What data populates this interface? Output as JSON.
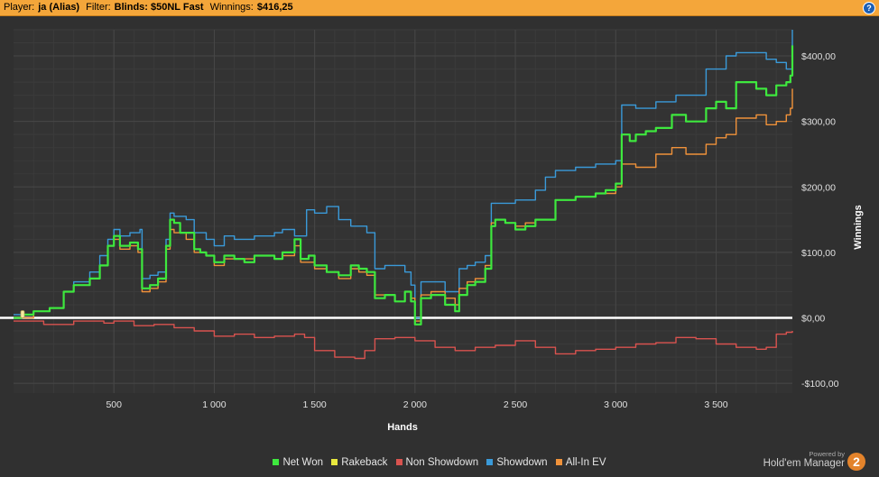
{
  "header": {
    "player_label": "Player:",
    "player_value": "ja (Alias)",
    "filter_label": "Filter:",
    "filter_value": "Blinds: $50NL Fast",
    "winnings_label": "Winnings:",
    "winnings_value": "$416,25",
    "help_icon": "?"
  },
  "branding": {
    "powered_by": "Powered by",
    "product": "Hold'em Manager",
    "logo_text": "2"
  },
  "chart_data": {
    "type": "line",
    "xlabel": "Hands",
    "ylabel": "Winnings",
    "xlim": [
      0,
      3880
    ],
    "ylim": [
      -115,
      440
    ],
    "x_ticks": [
      500,
      1000,
      1500,
      2000,
      2500,
      3000,
      3500
    ],
    "x_tick_labels": [
      "500",
      "1 000",
      "1 500",
      "2 000",
      "2 500",
      "3 000",
      "3 500"
    ],
    "y_ticks": [
      400,
      300,
      200,
      100,
      0,
      -100
    ],
    "y_tick_labels": [
      "$400,00",
      "$300,00",
      "$200,00",
      "$100,00",
      "$0,00",
      "-$100,00"
    ],
    "grid": true,
    "legend_position": "bottom",
    "series": [
      {
        "name": "Net Won",
        "color": "#3ee83e",
        "points": [
          [
            0,
            0
          ],
          [
            40,
            5
          ],
          [
            100,
            10
          ],
          [
            180,
            15
          ],
          [
            250,
            40
          ],
          [
            300,
            50
          ],
          [
            380,
            60
          ],
          [
            430,
            80
          ],
          [
            470,
            110
          ],
          [
            500,
            125
          ],
          [
            530,
            110
          ],
          [
            580,
            115
          ],
          [
            620,
            105
          ],
          [
            640,
            45
          ],
          [
            680,
            50
          ],
          [
            720,
            60
          ],
          [
            760,
            110
          ],
          [
            780,
            150
          ],
          [
            800,
            145
          ],
          [
            830,
            130
          ],
          [
            900,
            105
          ],
          [
            930,
            100
          ],
          [
            960,
            95
          ],
          [
            1000,
            85
          ],
          [
            1050,
            95
          ],
          [
            1100,
            90
          ],
          [
            1150,
            85
          ],
          [
            1200,
            95
          ],
          [
            1300,
            90
          ],
          [
            1340,
            100
          ],
          [
            1400,
            120
          ],
          [
            1430,
            90
          ],
          [
            1470,
            95
          ],
          [
            1500,
            80
          ],
          [
            1560,
            70
          ],
          [
            1620,
            65
          ],
          [
            1680,
            80
          ],
          [
            1720,
            75
          ],
          [
            1760,
            70
          ],
          [
            1800,
            30
          ],
          [
            1850,
            35
          ],
          [
            1900,
            25
          ],
          [
            1950,
            40
          ],
          [
            1980,
            25
          ],
          [
            2000,
            -10
          ],
          [
            2030,
            30
          ],
          [
            2080,
            35
          ],
          [
            2150,
            20
          ],
          [
            2200,
            10
          ],
          [
            2220,
            35
          ],
          [
            2260,
            50
          ],
          [
            2300,
            55
          ],
          [
            2350,
            75
          ],
          [
            2380,
            140
          ],
          [
            2400,
            150
          ],
          [
            2450,
            145
          ],
          [
            2500,
            135
          ],
          [
            2550,
            140
          ],
          [
            2600,
            150
          ],
          [
            2700,
            180
          ],
          [
            2800,
            185
          ],
          [
            2900,
            190
          ],
          [
            2950,
            195
          ],
          [
            3000,
            205
          ],
          [
            3030,
            280
          ],
          [
            3070,
            270
          ],
          [
            3100,
            280
          ],
          [
            3150,
            285
          ],
          [
            3200,
            290
          ],
          [
            3280,
            310
          ],
          [
            3350,
            300
          ],
          [
            3450,
            320
          ],
          [
            3500,
            330
          ],
          [
            3550,
            320
          ],
          [
            3600,
            360
          ],
          [
            3700,
            350
          ],
          [
            3750,
            340
          ],
          [
            3800,
            355
          ],
          [
            3850,
            360
          ],
          [
            3870,
            370
          ],
          [
            3880,
            416
          ]
        ]
      },
      {
        "name": "Rakeback",
        "color": "#e8e83e",
        "points": [
          [
            0,
            0
          ],
          [
            3880,
            0
          ]
        ]
      },
      {
        "name": "Non Showdown",
        "color": "#d9534f",
        "points": [
          [
            0,
            -5
          ],
          [
            150,
            -10
          ],
          [
            300,
            -5
          ],
          [
            450,
            -8
          ],
          [
            500,
            -5
          ],
          [
            600,
            -12
          ],
          [
            700,
            -10
          ],
          [
            800,
            -15
          ],
          [
            900,
            -20
          ],
          [
            1000,
            -28
          ],
          [
            1100,
            -25
          ],
          [
            1200,
            -30
          ],
          [
            1300,
            -28
          ],
          [
            1400,
            -25
          ],
          [
            1450,
            -30
          ],
          [
            1500,
            -50
          ],
          [
            1600,
            -60
          ],
          [
            1700,
            -62
          ],
          [
            1750,
            -50
          ],
          [
            1800,
            -32
          ],
          [
            1900,
            -30
          ],
          [
            2000,
            -35
          ],
          [
            2100,
            -45
          ],
          [
            2200,
            -50
          ],
          [
            2300,
            -45
          ],
          [
            2400,
            -42
          ],
          [
            2500,
            -35
          ],
          [
            2600,
            -45
          ],
          [
            2700,
            -55
          ],
          [
            2800,
            -50
          ],
          [
            2900,
            -48
          ],
          [
            3000,
            -45
          ],
          [
            3100,
            -40
          ],
          [
            3200,
            -38
          ],
          [
            3300,
            -30
          ],
          [
            3400,
            -32
          ],
          [
            3500,
            -40
          ],
          [
            3600,
            -45
          ],
          [
            3700,
            -48
          ],
          [
            3750,
            -45
          ],
          [
            3800,
            -25
          ],
          [
            3850,
            -22
          ],
          [
            3880,
            -20
          ]
        ]
      },
      {
        "name": "Showdown",
        "color": "#3a9ad9",
        "points": [
          [
            0,
            5
          ],
          [
            100,
            10
          ],
          [
            180,
            15
          ],
          [
            250,
            40
          ],
          [
            300,
            55
          ],
          [
            380,
            70
          ],
          [
            430,
            95
          ],
          [
            470,
            120
          ],
          [
            500,
            135
          ],
          [
            530,
            125
          ],
          [
            580,
            130
          ],
          [
            630,
            135
          ],
          [
            640,
            60
          ],
          [
            680,
            65
          ],
          [
            720,
            70
          ],
          [
            760,
            120
          ],
          [
            780,
            160
          ],
          [
            800,
            155
          ],
          [
            860,
            150
          ],
          [
            900,
            130
          ],
          [
            960,
            120
          ],
          [
            1000,
            110
          ],
          [
            1050,
            125
          ],
          [
            1100,
            120
          ],
          [
            1200,
            125
          ],
          [
            1300,
            130
          ],
          [
            1340,
            135
          ],
          [
            1400,
            125
          ],
          [
            1460,
            165
          ],
          [
            1500,
            160
          ],
          [
            1560,
            170
          ],
          [
            1620,
            150
          ],
          [
            1680,
            140
          ],
          [
            1760,
            130
          ],
          [
            1800,
            75
          ],
          [
            1850,
            80
          ],
          [
            1900,
            80
          ],
          [
            1950,
            70
          ],
          [
            1980,
            50
          ],
          [
            2000,
            0
          ],
          [
            2030,
            55
          ],
          [
            2080,
            55
          ],
          [
            2150,
            40
          ],
          [
            2200,
            40
          ],
          [
            2220,
            75
          ],
          [
            2260,
            80
          ],
          [
            2300,
            85
          ],
          [
            2350,
            95
          ],
          [
            2380,
            175
          ],
          [
            2400,
            175
          ],
          [
            2500,
            180
          ],
          [
            2600,
            195
          ],
          [
            2650,
            215
          ],
          [
            2700,
            225
          ],
          [
            2800,
            230
          ],
          [
            2900,
            235
          ],
          [
            3000,
            240
          ],
          [
            3030,
            325
          ],
          [
            3100,
            320
          ],
          [
            3200,
            330
          ],
          [
            3300,
            340
          ],
          [
            3400,
            340
          ],
          [
            3450,
            380
          ],
          [
            3500,
            380
          ],
          [
            3550,
            400
          ],
          [
            3600,
            405
          ],
          [
            3700,
            405
          ],
          [
            3750,
            395
          ],
          [
            3800,
            390
          ],
          [
            3850,
            380
          ],
          [
            3880,
            440
          ]
        ]
      },
      {
        "name": "All-In EV",
        "color": "#f0923a",
        "points": [
          [
            0,
            0
          ],
          [
            100,
            10
          ],
          [
            180,
            15
          ],
          [
            250,
            40
          ],
          [
            300,
            50
          ],
          [
            380,
            60
          ],
          [
            430,
            80
          ],
          [
            470,
            110
          ],
          [
            500,
            120
          ],
          [
            530,
            105
          ],
          [
            580,
            110
          ],
          [
            620,
            100
          ],
          [
            640,
            40
          ],
          [
            680,
            45
          ],
          [
            720,
            55
          ],
          [
            760,
            105
          ],
          [
            780,
            135
          ],
          [
            800,
            130
          ],
          [
            860,
            120
          ],
          [
            900,
            100
          ],
          [
            960,
            95
          ],
          [
            1000,
            80
          ],
          [
            1050,
            90
          ],
          [
            1100,
            90
          ],
          [
            1200,
            95
          ],
          [
            1300,
            90
          ],
          [
            1340,
            95
          ],
          [
            1400,
            110
          ],
          [
            1430,
            85
          ],
          [
            1470,
            85
          ],
          [
            1500,
            75
          ],
          [
            1560,
            70
          ],
          [
            1620,
            60
          ],
          [
            1680,
            75
          ],
          [
            1720,
            70
          ],
          [
            1760,
            65
          ],
          [
            1800,
            35
          ],
          [
            1850,
            35
          ],
          [
            1900,
            25
          ],
          [
            1950,
            40
          ],
          [
            1980,
            30
          ],
          [
            2000,
            -5
          ],
          [
            2030,
            35
          ],
          [
            2080,
            40
          ],
          [
            2150,
            30
          ],
          [
            2200,
            20
          ],
          [
            2220,
            45
          ],
          [
            2260,
            55
          ],
          [
            2300,
            60
          ],
          [
            2350,
            80
          ],
          [
            2380,
            145
          ],
          [
            2400,
            150
          ],
          [
            2450,
            145
          ],
          [
            2500,
            140
          ],
          [
            2550,
            145
          ],
          [
            2600,
            150
          ],
          [
            2700,
            180
          ],
          [
            2800,
            185
          ],
          [
            2900,
            190
          ],
          [
            2950,
            190
          ],
          [
            3000,
            200
          ],
          [
            3030,
            235
          ],
          [
            3100,
            230
          ],
          [
            3200,
            250
          ],
          [
            3280,
            260
          ],
          [
            3350,
            250
          ],
          [
            3450,
            265
          ],
          [
            3500,
            275
          ],
          [
            3550,
            280
          ],
          [
            3600,
            305
          ],
          [
            3700,
            310
          ],
          [
            3750,
            295
          ],
          [
            3800,
            300
          ],
          [
            3850,
            310
          ],
          [
            3870,
            320
          ],
          [
            3880,
            350
          ]
        ]
      }
    ]
  }
}
